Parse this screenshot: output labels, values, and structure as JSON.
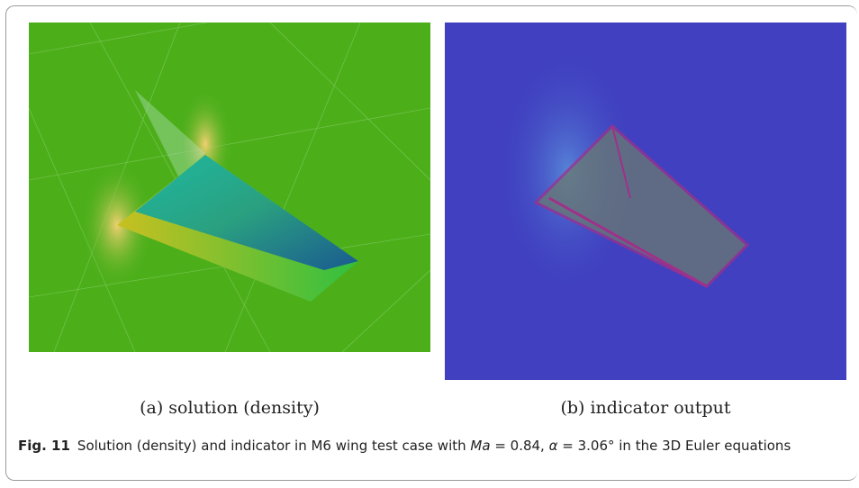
{
  "figure": {
    "panels": [
      {
        "caption": "(a) solution (density)"
      },
      {
        "caption": "(b) indicator output"
      }
    ],
    "label": "Fig. 11",
    "caption_parts": [
      "Solution (density) and indicator in M6 wing test case with ",
      "Ma",
      " = 0.84, ",
      "α",
      " = 3.06° in the 3D Euler equations"
    ]
  }
}
